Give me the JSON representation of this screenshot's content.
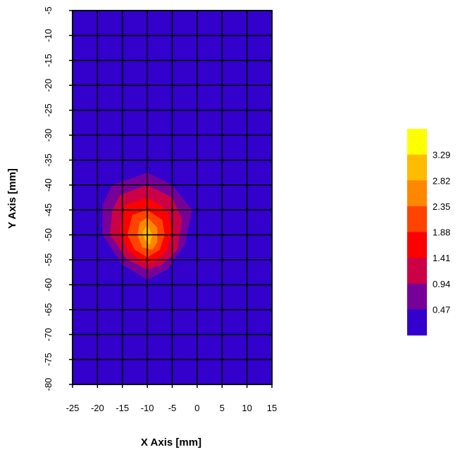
{
  "chart_data": {
    "type": "heatmap",
    "title": "",
    "xlabel": "X Axis [mm]",
    "ylabel": "Y Axis [mm]",
    "xlim": [
      -25,
      15
    ],
    "ylim": [
      -80,
      -5
    ],
    "x_ticks": [
      "-25",
      "-20",
      "-15",
      "-10",
      "-5",
      "0",
      "5",
      "10",
      "15"
    ],
    "y_ticks": [
      "-5",
      "-10",
      "-15",
      "-20",
      "-25",
      "-30",
      "-35",
      "-40",
      "-45",
      "-50",
      "-55",
      "-60",
      "-65",
      "-70",
      "-75",
      "-80"
    ],
    "grid": true,
    "background_value": 0.0,
    "peak": {
      "x": -10,
      "y": -50,
      "value": 3.0
    },
    "colorbar": {
      "labels": [
        "3.29",
        "2.82",
        "2.35",
        "1.88",
        "1.41",
        "0.94",
        "0.47"
      ],
      "levels": [
        0.47,
        0.94,
        1.41,
        1.88,
        2.35,
        2.82,
        3.29
      ],
      "colors": [
        "#3300cc",
        "#770099",
        "#cc0044",
        "#ff0000",
        "#ff4400",
        "#ff8800",
        "#ffbb00",
        "#ffff00"
      ]
    }
  }
}
